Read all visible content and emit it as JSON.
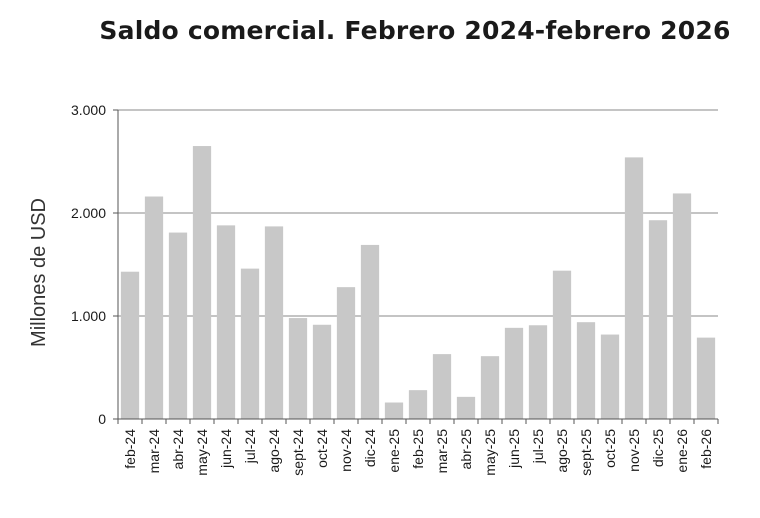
{
  "chart_data": {
    "type": "bar",
    "title": "Saldo comercial. Febrero 2024-febrero 2026",
    "ylabel": "Millones de USD",
    "xlabel": "",
    "ylim": [
      0,
      3000
    ],
    "yticks": [
      0,
      1000,
      2000,
      3000
    ],
    "ytick_labels": [
      "0",
      "1.000",
      "2.000",
      "3.000"
    ],
    "grid": true,
    "bar_color": "#c8c8c8",
    "categories": [
      "feb-24",
      "mar-24",
      "abr-24",
      "may-24",
      "jun-24",
      "jul-24",
      "ago-24",
      "sept-24",
      "oct-24",
      "nov-24",
      "dic-24",
      "ene-25",
      "feb-25",
      "mar-25",
      "abr-25",
      "may-25",
      "jun-25",
      "jul-25",
      "ago-25",
      "sept-25",
      "oct-25",
      "nov-25",
      "dic-25",
      "ene-26",
      "feb-26"
    ],
    "values": [
      1430,
      2160,
      1810,
      2650,
      1880,
      1460,
      1870,
      980,
      915,
      1280,
      1690,
      160,
      280,
      630,
      215,
      610,
      885,
      910,
      1440,
      940,
      820,
      2540,
      1930,
      2190,
      790
    ]
  }
}
